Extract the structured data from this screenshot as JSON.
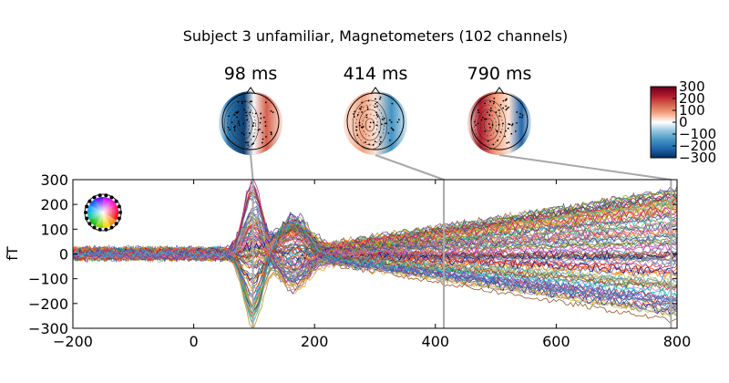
{
  "chart_data": {
    "type": "line",
    "title": "Subject 3 unfamiliar, Magnetometers (102 channels)",
    "xlabel": "",
    "ylabel": "fT",
    "xlim": [
      -200,
      800
    ],
    "ylim": [
      -300,
      300
    ],
    "xticks": [
      -200,
      0,
      200,
      400,
      600,
      800
    ],
    "yticks": [
      -300,
      -200,
      -100,
      0,
      100,
      200,
      300
    ],
    "x_tick_labels": [
      "−200",
      "0",
      "200",
      "400",
      "600",
      "800"
    ],
    "y_tick_labels": [
      "−300",
      "−200",
      "−100",
      "0",
      "100",
      "200",
      "300"
    ],
    "channel_count": 102,
    "time_markers_ms": [
      98,
      414,
      790
    ],
    "topomaps": [
      {
        "label": "98 ms",
        "time_ms": 98
      },
      {
        "label": "414 ms",
        "time_ms": 414
      },
      {
        "label": "790 ms",
        "time_ms": 790
      }
    ],
    "colorbar": {
      "range": [
        -300,
        300
      ],
      "ticks": [
        300,
        200,
        100,
        0,
        -100,
        -200,
        -300
      ],
      "tick_labels": [
        "300",
        "200",
        "100",
        "0",
        "−100",
        "−200",
        "−300"
      ],
      "cmap": [
        "#053061",
        "#2166ac",
        "#4393c3",
        "#92c5de",
        "#ffffff",
        "#f4a582",
        "#d6604d",
        "#b2182b",
        "#67001f"
      ]
    },
    "series_note": "102 magnetometer evoked-response traces, spatially colored; peak deflection near 98 ms",
    "marker_color": "#a8a8a8"
  }
}
